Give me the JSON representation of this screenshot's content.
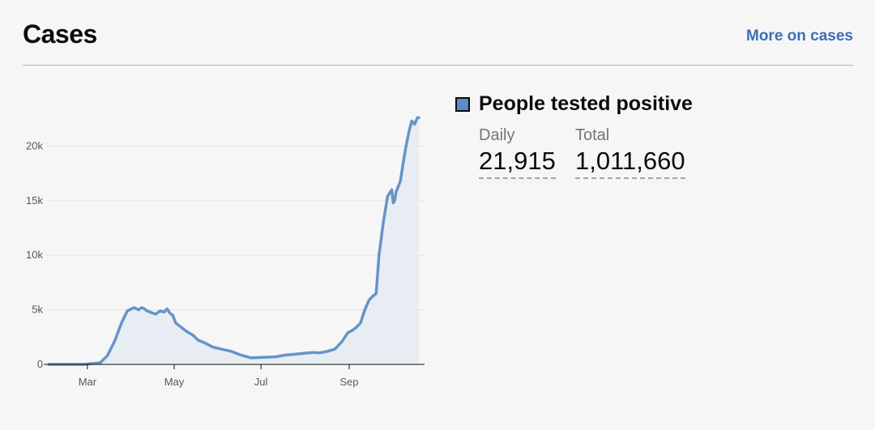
{
  "header": {
    "title": "Cases",
    "more_link": "More on cases"
  },
  "legend": {
    "label": "People tested positive",
    "swatch_color": "#5a8cc8"
  },
  "stats": {
    "daily_label": "Daily",
    "daily_value": "21,915",
    "total_label": "Total",
    "total_value": "1,011,660"
  },
  "chart_data": {
    "type": "area",
    "series_color": "#6694c8",
    "fill_color": "#e8edf3",
    "grid": true,
    "ylim": [
      0,
      23000
    ],
    "yticks": [
      {
        "value": 0,
        "label": "0"
      },
      {
        "value": 5000,
        "label": "5k"
      },
      {
        "value": 10000,
        "label": "10k"
      },
      {
        "value": 15000,
        "label": "15k"
      },
      {
        "value": 20000,
        "label": "20k"
      }
    ],
    "xlim": [
      "2020-02-01",
      "2020-10-24"
    ],
    "xticks": [
      {
        "value": "2020-03-01",
        "label": "Mar"
      },
      {
        "value": "2020-05-01",
        "label": "May"
      },
      {
        "value": "2020-07-01",
        "label": "Jul"
      },
      {
        "value": "2020-09-01",
        "label": "Sep"
      }
    ],
    "x": [
      "2020-02-03",
      "2020-02-15",
      "2020-02-27",
      "2020-03-10",
      "2020-03-15",
      "2020-03-20",
      "2020-03-25",
      "2020-03-29",
      "2020-04-01",
      "2020-04-03",
      "2020-04-06",
      "2020-04-08",
      "2020-04-10",
      "2020-04-12",
      "2020-04-14",
      "2020-04-16",
      "2020-04-18",
      "2020-04-21",
      "2020-04-24",
      "2020-04-26",
      "2020-04-28",
      "2020-04-30",
      "2020-05-02",
      "2020-05-04",
      "2020-05-07",
      "2020-05-10",
      "2020-05-14",
      "2020-05-18",
      "2020-05-22",
      "2020-05-28",
      "2020-06-03",
      "2020-06-10",
      "2020-06-16",
      "2020-06-24",
      "2020-07-03",
      "2020-07-11",
      "2020-07-18",
      "2020-07-26",
      "2020-08-03",
      "2020-08-07",
      "2020-08-11",
      "2020-08-17",
      "2020-08-22",
      "2020-08-27",
      "2020-08-31",
      "2020-09-03",
      "2020-09-06",
      "2020-09-09",
      "2020-09-12",
      "2020-09-15",
      "2020-09-18",
      "2020-09-20",
      "2020-09-22",
      "2020-09-25",
      "2020-09-28",
      "2020-10-01",
      "2020-10-02",
      "2020-10-03",
      "2020-10-04",
      "2020-10-07",
      "2020-10-09",
      "2020-10-11",
      "2020-10-13",
      "2020-10-15",
      "2020-10-17",
      "2020-10-19",
      "2020-10-20"
    ],
    "y": [
      0,
      0,
      0,
      150,
      800,
      2100,
      3800,
      4900,
      5100,
      5200,
      5000,
      5200,
      5100,
      4900,
      4800,
      4700,
      4600,
      4900,
      4800,
      5100,
      4700,
      4500,
      3800,
      3600,
      3300,
      3000,
      2700,
      2200,
      2000,
      1600,
      1400,
      1200,
      900,
      600,
      650,
      700,
      850,
      950,
      1050,
      1100,
      1050,
      1200,
      1400,
      2100,
      2900,
      3100,
      3400,
      3800,
      5000,
      5900,
      6300,
      6500,
      10000,
      13000,
      15400,
      16000,
      14800,
      15000,
      15800,
      16800,
      18500,
      20000,
      21300,
      22300,
      22000,
      22600,
      22600
    ]
  }
}
